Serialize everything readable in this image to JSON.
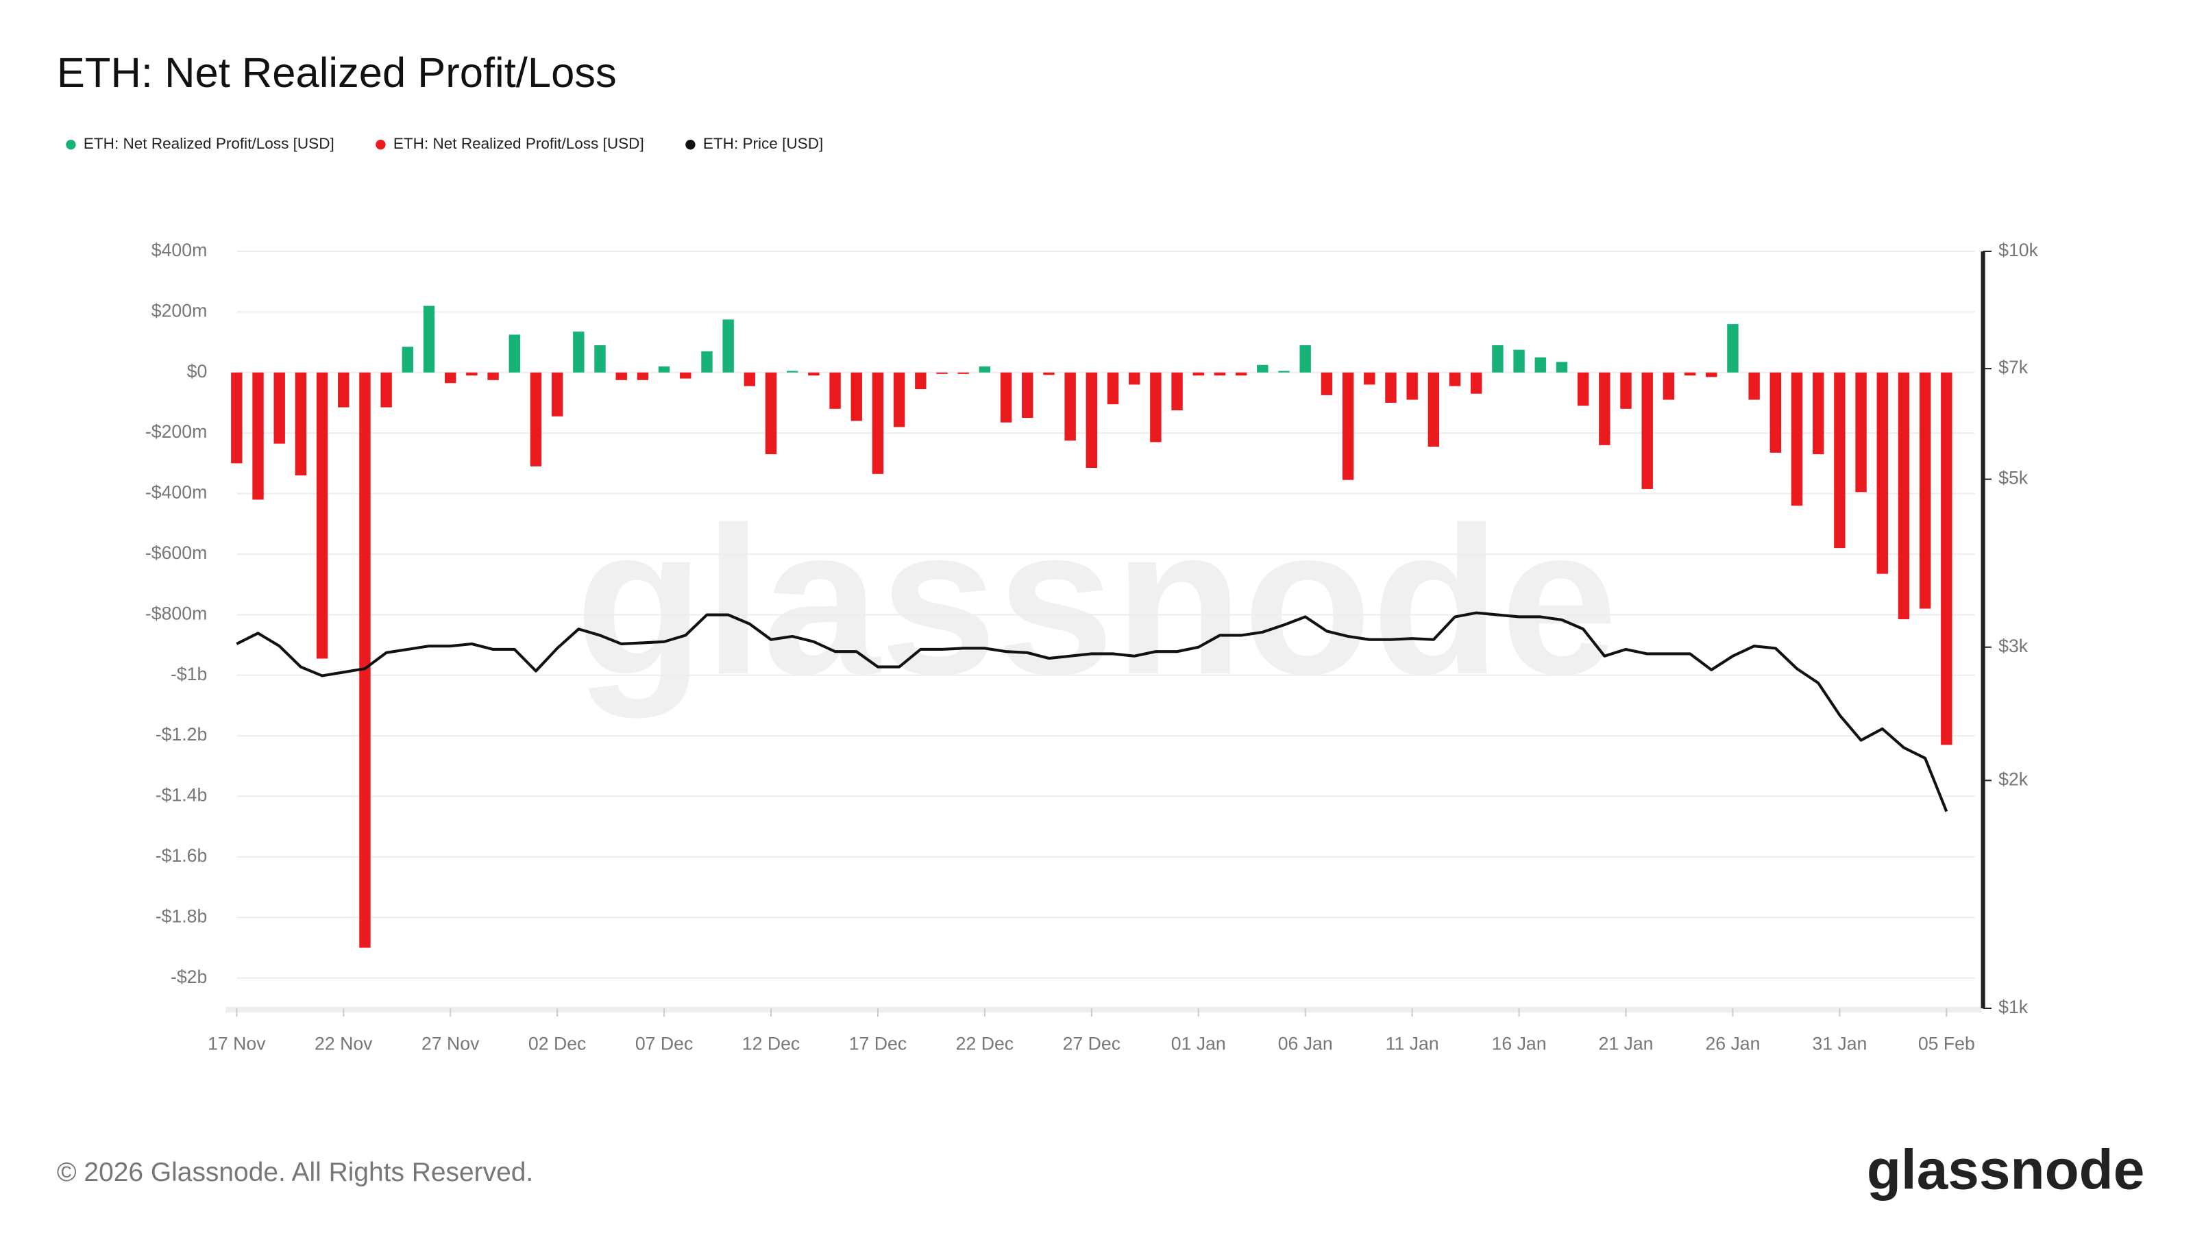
{
  "chart_data": {
    "type": "bar",
    "title": "ETH: Net Realized Profit/Loss",
    "watermark": "glassnode",
    "legend": "top-left",
    "grid": true,
    "categories": [
      "17 Nov",
      null,
      null,
      null,
      null,
      "22 Nov",
      null,
      null,
      null,
      null,
      "27 Nov",
      null,
      null,
      null,
      null,
      "02 Dec",
      null,
      null,
      null,
      null,
      "07 Dec",
      null,
      null,
      null,
      null,
      "12 Dec",
      null,
      null,
      null,
      null,
      "17 Dec",
      null,
      null,
      null,
      null,
      "22 Dec",
      null,
      null,
      null,
      null,
      "27 Dec",
      null,
      null,
      null,
      null,
      "01 Jan",
      null,
      null,
      null,
      null,
      "06 Jan",
      null,
      null,
      null,
      null,
      "11 Jan",
      null,
      null,
      null,
      null,
      "16 Jan",
      null,
      null,
      null,
      null,
      "21 Jan",
      null,
      null,
      null,
      null,
      "26 Jan",
      null,
      null,
      null,
      null,
      "31 Jan",
      null,
      null,
      null,
      null,
      "05 Feb"
    ],
    "ylim": [
      -2100,
      400
    ],
    "yticks": [
      {
        "value": 400,
        "label": "$400m"
      },
      {
        "value": 200,
        "label": "$200m"
      },
      {
        "value": 0,
        "label": "$0"
      },
      {
        "value": -200,
        "label": "-$200m"
      },
      {
        "value": -400,
        "label": "-$400m"
      },
      {
        "value": -600,
        "label": "-$600m"
      },
      {
        "value": -800,
        "label": "-$800m"
      },
      {
        "value": -1000,
        "label": "-$1b"
      },
      {
        "value": -1200,
        "label": "-$1.2b"
      },
      {
        "value": -1400,
        "label": "-$1.4b"
      },
      {
        "value": -1600,
        "label": "-$1.6b"
      },
      {
        "value": -1800,
        "label": "-$1.8b"
      },
      {
        "value": -2000,
        "label": "-$2b"
      }
    ],
    "y2lim": [
      1000,
      10000
    ],
    "y2log": true,
    "y2ticks": [
      {
        "value": 10000,
        "label": "$10k"
      },
      {
        "value": 7000,
        "label": "$7k"
      },
      {
        "value": 5000,
        "label": "$5k"
      },
      {
        "value": 3000,
        "label": "$3k"
      },
      {
        "value": 2000,
        "label": "$2k"
      },
      {
        "value": 1000,
        "label": "$1k"
      }
    ],
    "series": [
      {
        "name": "ETH: Net Realized Profit/Loss [USD]",
        "color": "#16b277",
        "type": "bar",
        "values": [
          null,
          null,
          null,
          null,
          null,
          null,
          null,
          null,
          85,
          220,
          null,
          null,
          null,
          125,
          null,
          null,
          135,
          90,
          null,
          null,
          20,
          null,
          70,
          175,
          null,
          null,
          5,
          null,
          null,
          null,
          null,
          null,
          null,
          null,
          null,
          20,
          null,
          null,
          null,
          null,
          null,
          null,
          null,
          null,
          null,
          null,
          null,
          null,
          25,
          5,
          90,
          null,
          null,
          null,
          null,
          null,
          null,
          null,
          null,
          90,
          75,
          50,
          35,
          null,
          null,
          null,
          null,
          null,
          null,
          null,
          160,
          null,
          null,
          null,
          null,
          null,
          null,
          null,
          null,
          null,
          null
        ]
      },
      {
        "name": "ETH: Net Realized Profit/Loss [USD]",
        "color": "#ea1a1f",
        "type": "bar",
        "values": [
          -300,
          -420,
          -235,
          -340,
          -945,
          -115,
          -1900,
          -115,
          null,
          null,
          -35,
          -10,
          -25,
          null,
          -310,
          -145,
          null,
          null,
          -25,
          -25,
          null,
          -20,
          null,
          null,
          -45,
          -270,
          null,
          -10,
          -120,
          -160,
          -335,
          -180,
          -55,
          -3,
          -3,
          null,
          -165,
          -150,
          -8,
          -225,
          -315,
          -105,
          -40,
          -230,
          -125,
          -10,
          -10,
          -10,
          null,
          null,
          null,
          -75,
          -355,
          -40,
          -100,
          -90,
          -245,
          -45,
          -70,
          null,
          null,
          null,
          null,
          -110,
          -240,
          -120,
          -385,
          -90,
          -10,
          -15,
          null,
          -90,
          -265,
          -440,
          -270,
          -580,
          -395,
          -665,
          -815,
          -780,
          -1230
        ]
      },
      {
        "name": "ETH: Price [USD]",
        "color": "#111111",
        "type": "line",
        "axis": "y2",
        "values": [
          3030,
          3130,
          3010,
          2825,
          2750,
          2780,
          2810,
          2950,
          2980,
          3010,
          3010,
          3030,
          2980,
          2980,
          2790,
          2990,
          3170,
          3110,
          3030,
          3040,
          3050,
          3110,
          3310,
          3310,
          3220,
          3070,
          3100,
          3050,
          2960,
          2960,
          2825,
          2825,
          2980,
          2980,
          2990,
          2990,
          2960,
          2950,
          2900,
          2920,
          2940,
          2940,
          2920,
          2960,
          2960,
          3000,
          3110,
          3110,
          3140,
          3210,
          3290,
          3150,
          3100,
          3070,
          3070,
          3080,
          3070,
          3290,
          3330,
          3310,
          3290,
          3290,
          3260,
          3170,
          2920,
          2980,
          2940,
          2940,
          2940,
          2800,
          2920,
          3010,
          2990,
          2810,
          2690,
          2440,
          2260,
          2340,
          2210,
          2140,
          1820
        ]
      }
    ]
  },
  "footer": {
    "copyright": "© 2026 Glassnode. All Rights Reserved.",
    "logo": "glassnode"
  }
}
